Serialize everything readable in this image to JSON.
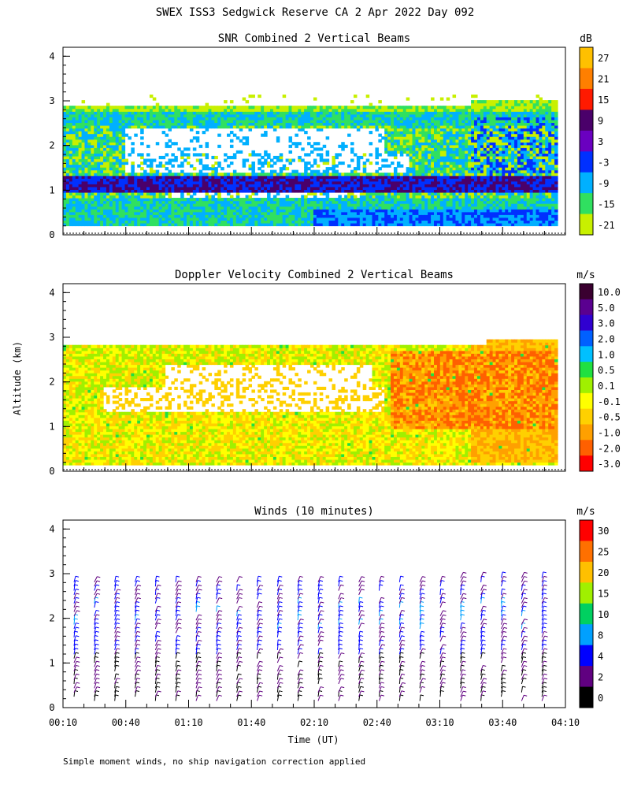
{
  "figure": {
    "title": "SWEX ISS3 Sedgwick Reserve CA   2 Apr 2022 Day 092",
    "ylabel": "Altitude (km)",
    "xlabel": "Time (UT)",
    "footnote": "Simple moment winds, no ship navigation correction applied",
    "xticks": [
      "00:10",
      "00:40",
      "01:10",
      "01:40",
      "02:10",
      "02:40",
      "03:10",
      "03:40",
      "04:10"
    ],
    "yticks": [
      "0",
      "1",
      "2",
      "3",
      "4"
    ]
  },
  "chart_data": [
    {
      "type": "heatmap",
      "title": "SNR Combined 2 Vertical Beams",
      "colorbar_unit": "dB",
      "ylim": [
        0,
        4
      ],
      "xlim": [
        "00:10",
        "04:10"
      ],
      "colorbar": {
        "labels": [
          "27",
          "21",
          "15",
          "9",
          "3",
          "-3",
          "-9",
          "-15",
          "-21"
        ],
        "colors": [
          "#ffc000",
          "#ff7f00",
          "#ff1a00",
          "#4a006a",
          "#6a00c0",
          "#0030ff",
          "#00b0ff",
          "#30e060",
          "#c8f000"
        ]
      }
    },
    {
      "type": "heatmap",
      "title": "Doppler Velocity Combined 2 Vertical Beams",
      "colorbar_unit": "m/s",
      "ylim": [
        0,
        4
      ],
      "xlim": [
        "00:10",
        "04:10"
      ],
      "colorbar": {
        "labels": [
          "10.0",
          "5.0",
          "3.0",
          "2.0",
          "1.0",
          "0.5",
          "0.1",
          "-0.1",
          "-0.5",
          "-1.0",
          "-2.0",
          "-3.0"
        ],
        "colors": [
          "#3a0030",
          "#5a0090",
          "#3000d0",
          "#0060ff",
          "#00c0ff",
          "#20e040",
          "#a0f000",
          "#ffff00",
          "#ffd000",
          "#ffa000",
          "#ff6000",
          "#ff0000"
        ]
      }
    },
    {
      "type": "scatter",
      "title": "Winds (10 minutes)",
      "colorbar_unit": "m/s",
      "ylim": [
        0,
        4
      ],
      "xlim": [
        "00:10",
        "04:10"
      ],
      "colorbar": {
        "labels": [
          "30",
          "25",
          "20",
          "15",
          "10",
          "8",
          "4",
          "2",
          "0"
        ],
        "colors": [
          "#ff0000",
          "#ff7000",
          "#ffc000",
          "#a0f000",
          "#00d060",
          "#00a0ff",
          "#0000ff",
          "#600080",
          "#000000"
        ]
      }
    }
  ]
}
